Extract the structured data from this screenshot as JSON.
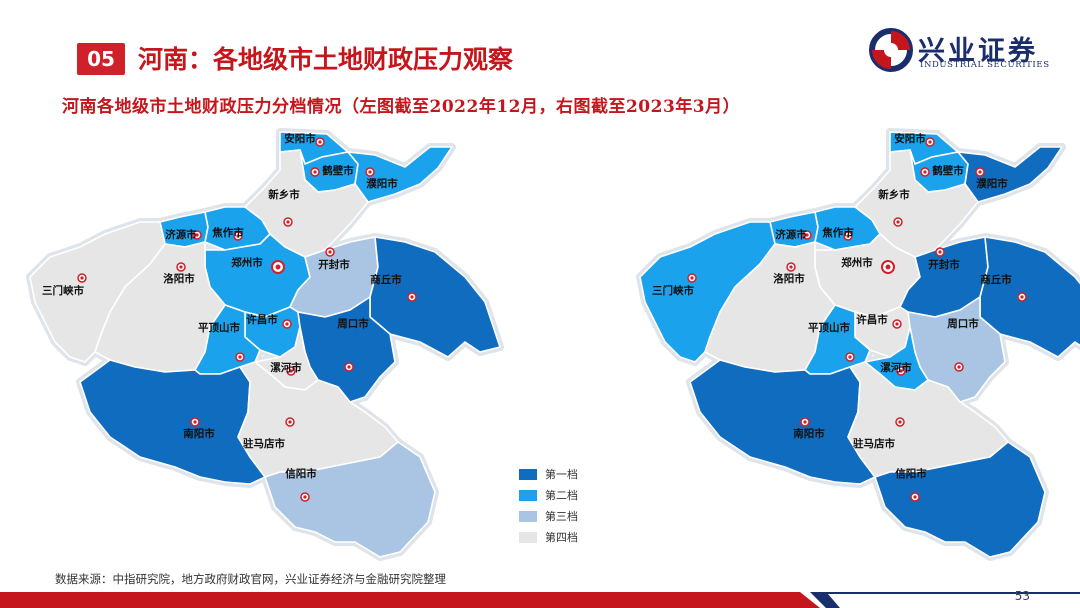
{
  "header": {
    "badge": "05",
    "title": "河南：各地级市土地财政压力观察",
    "subtitle": "河南各地级市土地财政压力分档情况（左图截至2022年12月，右图截至2023年3月）"
  },
  "logo": {
    "name_cn": "兴业证券",
    "name_en": "INDUSTRIAL SECURITIES"
  },
  "colors": {
    "tier1": "#0f6cbf",
    "tier2": "#1aa3ec",
    "tier3": "#a9c5e3",
    "tier4": "#e6e6e6",
    "accent": "#c4161c"
  },
  "legend": [
    {
      "label": "第一档",
      "color": "#0f6cbf"
    },
    {
      "label": "第二档",
      "color": "#1aa3ec"
    },
    {
      "label": "第三档",
      "color": "#a9c5e3"
    },
    {
      "label": "第四档",
      "color": "#e6e6e6"
    }
  ],
  "cities": [
    "安阳市",
    "鹤壁市",
    "濮阳市",
    "新乡市",
    "济源市",
    "焦作市",
    "郑州市",
    "开封市",
    "商丘市",
    "三门峡市",
    "洛阳市",
    "许昌市",
    "平顶山市",
    "周口市",
    "漯河市",
    "南阳市",
    "驻马店市",
    "信阳市"
  ],
  "left_map": {
    "as_of": "截至2022年12月",
    "tiers": {
      "安阳市": 2,
      "鹤壁市": 2,
      "濮阳市": 2,
      "新乡市": 4,
      "济源市": 2,
      "焦作市": 2,
      "郑州市": 2,
      "开封市": 3,
      "商丘市": 1,
      "三门峡市": 4,
      "洛阳市": 4,
      "许昌市": 2,
      "平顶山市": 2,
      "周口市": 1,
      "漯河市": 4,
      "南阳市": 1,
      "驻马店市": 4,
      "信阳市": 3
    }
  },
  "right_map": {
    "as_of": "截至2023年3月",
    "tiers": {
      "安阳市": 2,
      "鹤壁市": 2,
      "濮阳市": 1,
      "新乡市": 4,
      "济源市": 2,
      "焦作市": 2,
      "郑州市": 4,
      "开封市": 1,
      "商丘市": 1,
      "三门峡市": 2,
      "洛阳市": 4,
      "许昌市": 4,
      "平顶山市": 2,
      "周口市": 3,
      "漯河市": 2,
      "南阳市": 1,
      "驻马店市": 4,
      "信阳市": 1
    }
  },
  "source": "数据来源：中指研究院，地方政府财政官网，兴业证券经济与金融研究院整理",
  "page_number": "53"
}
